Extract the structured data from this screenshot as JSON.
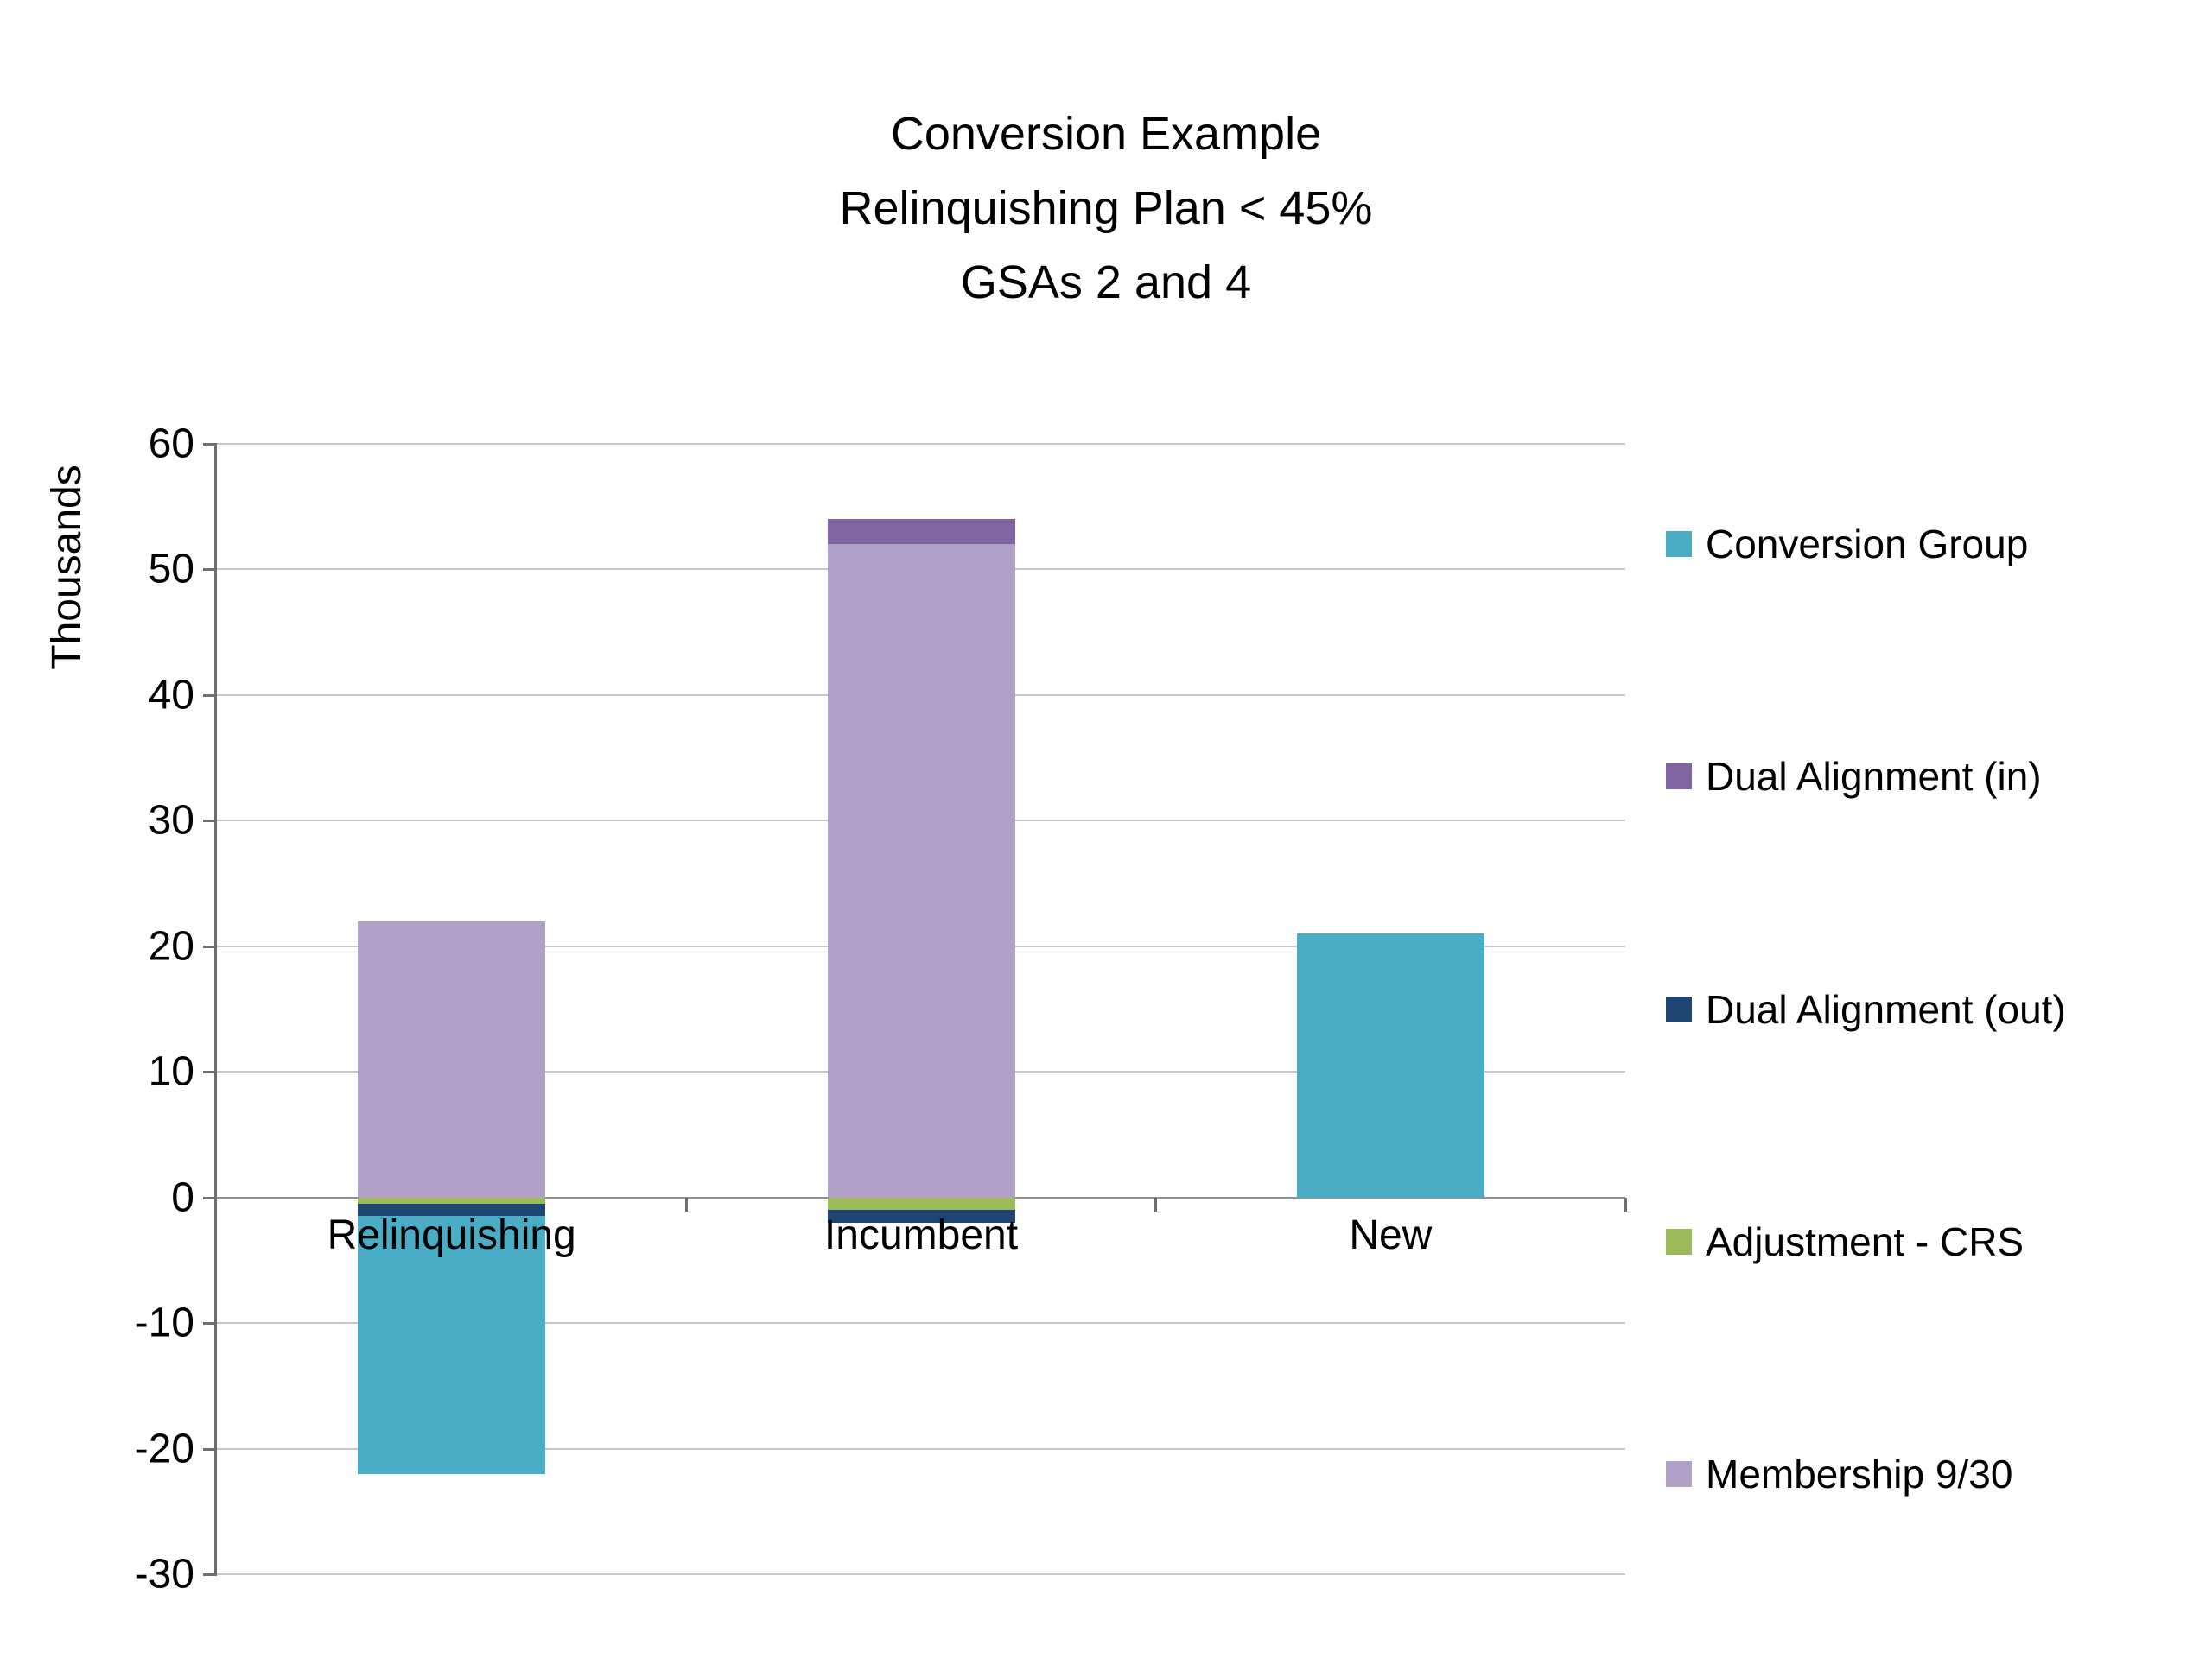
{
  "page": {
    "background": "#FFFFFF"
  },
  "chart_data": {
    "type": "bar",
    "variant": "stacked-column",
    "title_lines": [
      "Conversion Example",
      "Relinquishing Plan < 45%",
      "GSAs 2 and 4"
    ],
    "ylabel": "Thousands",
    "ylim": [
      -30,
      60
    ],
    "yticks": [
      60,
      50,
      40,
      30,
      20,
      10,
      0,
      -10,
      -20,
      -30
    ],
    "grid": true,
    "legend_position": "right",
    "categories": [
      "Relinquishing",
      "Incumbent",
      "New"
    ],
    "series": [
      {
        "name": "Conversion Group",
        "color": "#4BACC6",
        "values": [
          -20.5,
          0,
          21
        ]
      },
      {
        "name": "Dual Alignment (in)",
        "color": "#8064A2",
        "values": [
          0,
          2,
          0
        ]
      },
      {
        "name": "Dual Alignment (out)",
        "color": "#1F4672",
        "values": [
          -1,
          -1,
          0
        ]
      },
      {
        "name": "Adjustment - CRS",
        "color": "#9BBB59",
        "values": [
          -0.5,
          -1,
          0
        ]
      },
      {
        "name": "Membership 9/30",
        "color": "#B2A1C7",
        "values": [
          22,
          52,
          0
        ]
      }
    ],
    "stack_order": [
      "Adjustment - CRS",
      "Dual Alignment (out)",
      "Conversion Group",
      "Membership 9/30",
      "Dual Alignment (in)"
    ],
    "colors": {
      "gridline": "#C6C6C6",
      "zero_line": "#8F8F8F",
      "axis_line": "#6E6E6E",
      "text": "#000000"
    }
  }
}
